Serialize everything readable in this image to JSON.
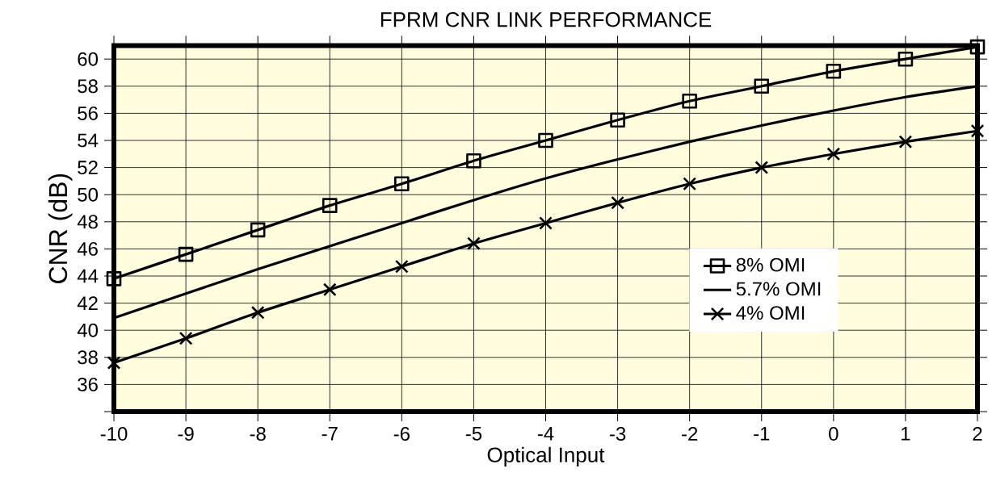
{
  "chart_data": {
    "type": "line",
    "title": "FPRM CNR LINK PERFORMANCE",
    "xlabel": "Optical Input",
    "ylabel": "CNR (dB)",
    "x": [
      -10,
      -9,
      -8,
      -7,
      -6,
      -5,
      -4,
      -3,
      -2,
      -1,
      0,
      1,
      2
    ],
    "series": [
      {
        "name": "8% OMI",
        "color": "#000000",
        "marker": "square",
        "values": [
          43.8,
          45.6,
          47.4,
          49.2,
          50.8,
          52.5,
          54.0,
          55.5,
          56.9,
          58.0,
          59.1,
          60.0,
          60.9
        ]
      },
      {
        "name": "5.7% OMI",
        "color": "#000000",
        "marker": "none",
        "values": [
          40.9,
          42.7,
          44.5,
          46.2,
          47.9,
          49.6,
          51.2,
          52.6,
          53.9,
          55.1,
          56.2,
          57.2,
          58.0
        ]
      },
      {
        "name": "4% OMI",
        "color": "#000000",
        "marker": "cross",
        "values": [
          37.6,
          39.4,
          41.3,
          43.0,
          44.7,
          46.4,
          47.9,
          49.4,
          50.8,
          52.0,
          53.0,
          53.9,
          54.7
        ]
      }
    ],
    "xlim": [
      -10,
      2
    ],
    "xticks": [
      -10,
      -9,
      -8,
      -7,
      -6,
      -5,
      -4,
      -3,
      -2,
      -1,
      0,
      1,
      2
    ],
    "ylim": [
      34,
      61
    ],
    "yticks": [
      {
        "value": 34,
        "label": null
      },
      36,
      38,
      40,
      42,
      44,
      46,
      48,
      50,
      52,
      54,
      56,
      58,
      60
    ],
    "grid": true,
    "legend": "right",
    "line_style": "solid"
  }
}
